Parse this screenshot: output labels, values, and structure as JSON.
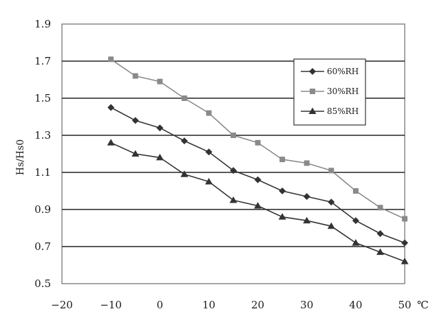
{
  "chart_data": {
    "type": "line",
    "ylabel": "Hs/Hs0",
    "xlabel": "",
    "x_unit": "℃",
    "xlim": [
      -20,
      50
    ],
    "ylim": [
      0.5,
      1.9
    ],
    "x_ticks": [
      -20,
      -10,
      0,
      10,
      20,
      30,
      40,
      50
    ],
    "y_ticks": [
      0.5,
      0.7,
      0.9,
      1.1,
      1.3,
      1.5,
      1.7,
      1.9
    ],
    "y_tick_labels": [
      "0.5",
      "0.7",
      "0.9",
      "1.1",
      "1.3",
      "1.5",
      "1.7",
      "1.9"
    ],
    "grid": "horizontal",
    "legend_position": "right",
    "series": [
      {
        "name": "60%RH",
        "marker": "diamond",
        "color": "#333333",
        "x": [
          -10,
          -5,
          0,
          5,
          10,
          15,
          20,
          25,
          30,
          35,
          40,
          45,
          50
        ],
        "y": [
          1.45,
          1.38,
          1.34,
          1.27,
          1.21,
          1.11,
          1.06,
          1.0,
          0.97,
          0.94,
          0.84,
          0.77,
          0.72
        ]
      },
      {
        "name": "30%RH",
        "marker": "square",
        "color": "#8a8a8a",
        "x": [
          -10,
          -5,
          0,
          5,
          10,
          15,
          20,
          25,
          30,
          35,
          40,
          45,
          50
        ],
        "y": [
          1.71,
          1.62,
          1.59,
          1.5,
          1.42,
          1.3,
          1.26,
          1.17,
          1.15,
          1.11,
          1.0,
          0.91,
          0.85
        ]
      },
      {
        "name": "85%RH",
        "marker": "triangle",
        "color": "#333333",
        "x": [
          -10,
          -5,
          0,
          5,
          10,
          15,
          20,
          25,
          30,
          35,
          40,
          45,
          50
        ],
        "y": [
          1.26,
          1.2,
          1.18,
          1.09,
          1.05,
          0.95,
          0.92,
          0.86,
          0.84,
          0.81,
          0.72,
          0.67,
          0.62
        ]
      }
    ]
  }
}
